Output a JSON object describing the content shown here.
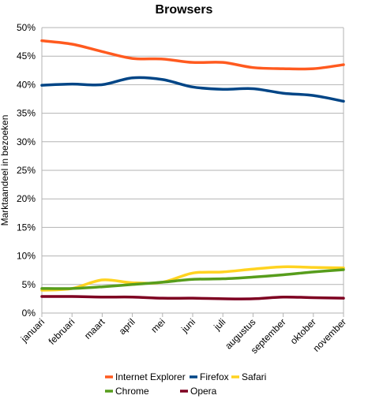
{
  "chart_data": {
    "type": "line",
    "title": "Browsers",
    "xlabel": "",
    "ylabel": "Marktaandeel in bezoeken",
    "categories": [
      "januari",
      "februari",
      "maart",
      "april",
      "mei",
      "juni",
      "juli",
      "augustus",
      "september",
      "oktober",
      "november"
    ],
    "ylim": [
      0,
      50
    ],
    "yticks": [
      0,
      5,
      10,
      15,
      20,
      25,
      30,
      35,
      40,
      45,
      50
    ],
    "ytick_labels": [
      "0%",
      "5%",
      "10%",
      "15%",
      "20%",
      "25%",
      "30%",
      "35%",
      "40%",
      "45%",
      "50%"
    ],
    "grid": true,
    "legend_position": "bottom",
    "series": [
      {
        "name": "Internet Explorer",
        "color": "#ff5a1f",
        "values": [
          47.7,
          47.1,
          45.8,
          44.6,
          44.5,
          43.9,
          43.9,
          43.0,
          42.8,
          42.8,
          43.5
        ]
      },
      {
        "name": "Firefox",
        "color": "#004586",
        "values": [
          39.9,
          40.1,
          40.0,
          41.2,
          40.9,
          39.6,
          39.2,
          39.3,
          38.5,
          38.1,
          37.1
        ]
      },
      {
        "name": "Safari",
        "color": "#ffd320",
        "values": [
          4.0,
          4.3,
          5.8,
          5.3,
          5.4,
          7.0,
          7.2,
          7.7,
          8.1,
          8.0,
          7.9
        ]
      },
      {
        "name": "Chrome",
        "color": "#579d1c",
        "values": [
          4.3,
          4.3,
          4.6,
          5.0,
          5.4,
          5.9,
          6.0,
          6.3,
          6.7,
          7.2,
          7.6
        ]
      },
      {
        "name": "Opera",
        "color": "#7e0021",
        "values": [
          2.9,
          2.9,
          2.8,
          2.8,
          2.6,
          2.6,
          2.5,
          2.5,
          2.8,
          2.7,
          2.6
        ]
      }
    ]
  }
}
